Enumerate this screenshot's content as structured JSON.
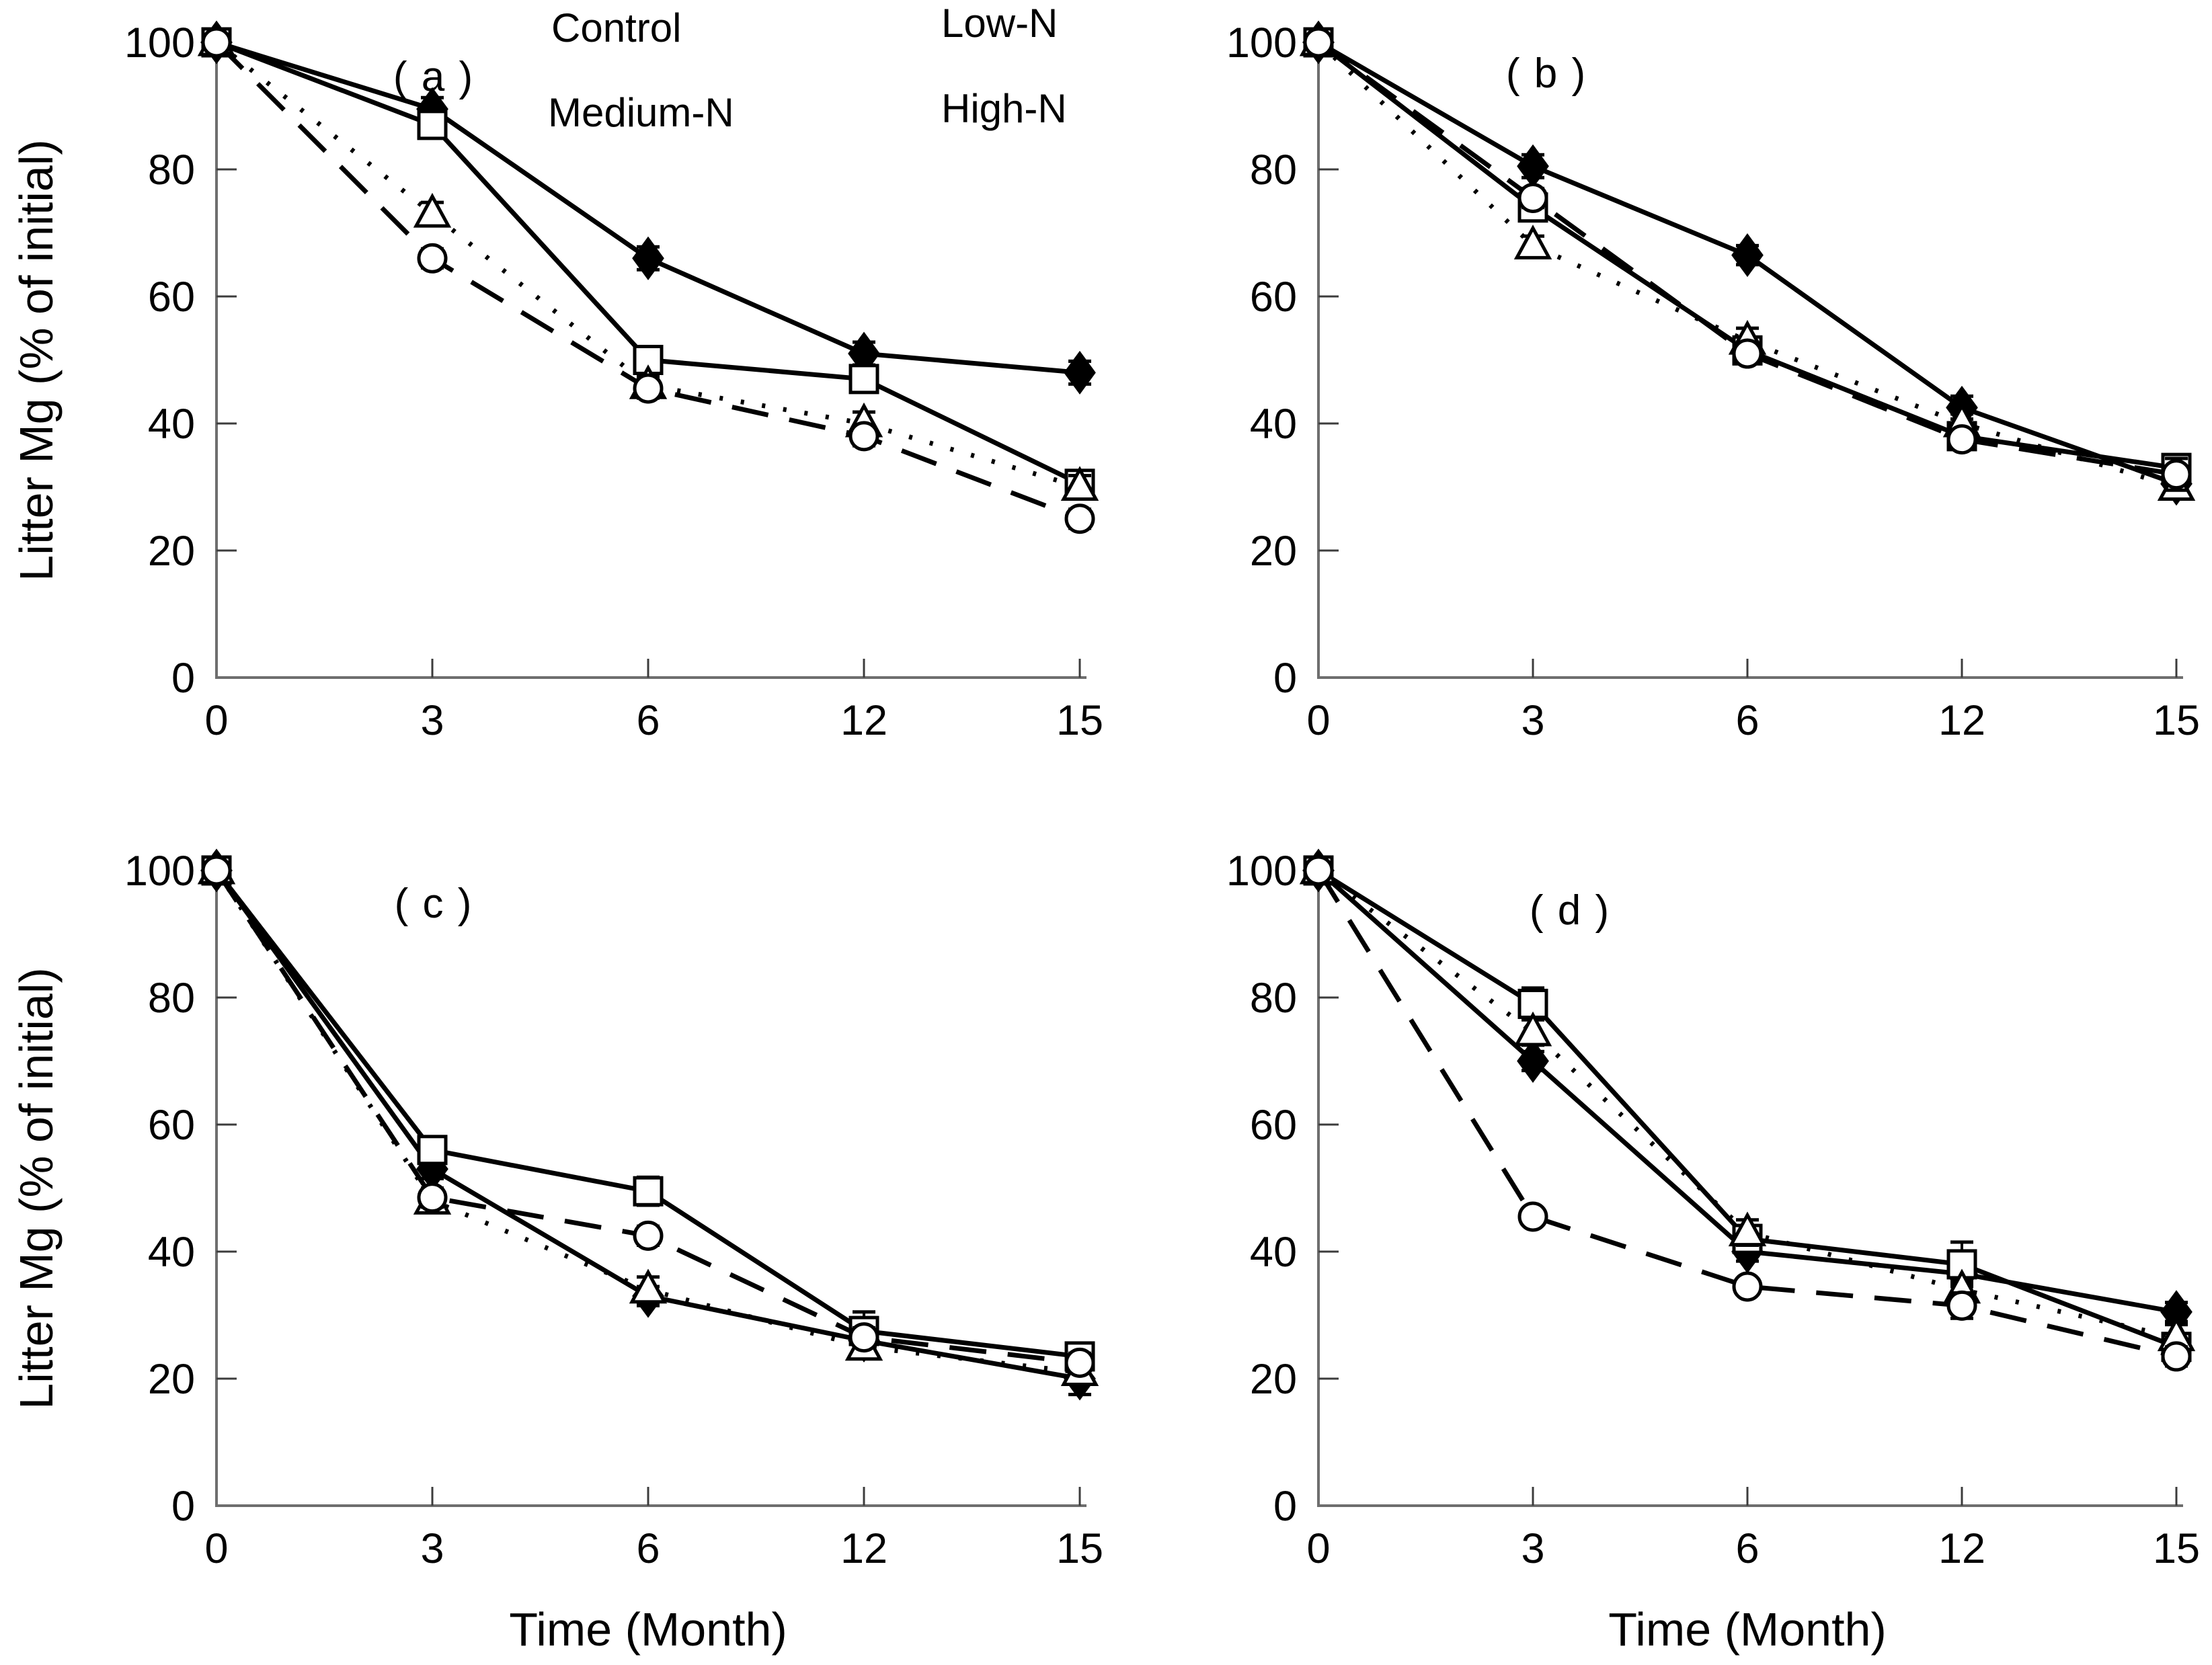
{
  "figure": {
    "y_axis_label": "Litter Mg (% of initial)",
    "x_axis_label": "Time (Month)",
    "background": "#ffffff",
    "line_color": "#000000",
    "axis_color": "#707070",
    "legend": {
      "position": "top-inside-panel-a",
      "items": [
        {
          "label": "Control",
          "marker": "open-circle",
          "line": "dashed"
        },
        {
          "label": "Low-N",
          "marker": "open-square",
          "line": "solid"
        },
        {
          "label": "Medium-N",
          "marker": "open-triangle",
          "line": "dotted"
        },
        {
          "label": "High-N",
          "marker": "filled-diamond",
          "line": "solid"
        }
      ]
    }
  },
  "chart_data": [
    {
      "type": "line",
      "label": "( a )",
      "xlabel": "",
      "ylabel": "Litter Mg (% of initial)",
      "x": [
        0,
        3,
        6,
        12,
        15
      ],
      "x_tick_labels": [
        "0",
        "3",
        "6",
        "12",
        "15"
      ],
      "y_ticks": [
        0,
        20,
        40,
        60,
        80,
        100
      ],
      "ylim": [
        0,
        100
      ],
      "x_spacing": "categorical-equal",
      "series": [
        {
          "name": "Control",
          "values": [
            100,
            66,
            45.5,
            38,
            25
          ],
          "errors": [
            0,
            1.5,
            1.5,
            1.5,
            1.5
          ]
        },
        {
          "name": "Low-N",
          "values": [
            100,
            87,
            50,
            47,
            30.5
          ],
          "errors": [
            0,
            1.5,
            1.5,
            1.5,
            1.8
          ]
        },
        {
          "name": "Medium-N",
          "values": [
            100,
            73,
            46,
            40,
            30
          ],
          "errors": [
            0,
            1.8,
            1.5,
            1.8,
            1.8
          ]
        },
        {
          "name": "High-N",
          "values": [
            100,
            89.5,
            66,
            51,
            48
          ],
          "errors": [
            0,
            1.8,
            1.8,
            1.8,
            1.8
          ]
        }
      ]
    },
    {
      "type": "line",
      "label": "( b )",
      "xlabel": "",
      "ylabel": "Litter Mg (% of initial)",
      "x": [
        0,
        3,
        6,
        12,
        15
      ],
      "x_tick_labels": [
        "0",
        "3",
        "6",
        "12",
        "15"
      ],
      "y_ticks": [
        0,
        20,
        40,
        60,
        80,
        100
      ],
      "ylim": [
        0,
        100
      ],
      "x_spacing": "categorical-equal",
      "series": [
        {
          "name": "Control",
          "values": [
            100,
            75.5,
            51,
            37.5,
            32
          ],
          "errors": [
            0,
            1.5,
            1.5,
            1.5,
            2.5
          ]
        },
        {
          "name": "Low-N",
          "values": [
            100,
            74,
            51.5,
            38,
            33
          ],
          "errors": [
            0,
            1.8,
            1.5,
            1.5,
            1.8
          ]
        },
        {
          "name": "Medium-N",
          "values": [
            100,
            68,
            53,
            40,
            30
          ],
          "errors": [
            0,
            1.5,
            2.0,
            1.5,
            1.5
          ]
        },
        {
          "name": "High-N",
          "values": [
            100,
            80.5,
            66.5,
            42.5,
            30.5
          ],
          "errors": [
            0,
            1.8,
            1.5,
            1.8,
            1.5
          ]
        }
      ]
    },
    {
      "type": "line",
      "label": "( c )",
      "xlabel": "Time (Month)",
      "ylabel": "Litter Mg (% of initial)",
      "x": [
        0,
        3,
        6,
        12,
        15
      ],
      "x_tick_labels": [
        "0",
        "3",
        "6",
        "12",
        "15"
      ],
      "y_ticks": [
        0,
        20,
        40,
        60,
        80,
        100
      ],
      "ylim": [
        0,
        100
      ],
      "x_spacing": "categorical-equal",
      "series": [
        {
          "name": "Control",
          "values": [
            100,
            48.5,
            42.5,
            26.5,
            22.5
          ],
          "errors": [
            0,
            1.5,
            1.5,
            1.5,
            1.5
          ]
        },
        {
          "name": "Low-N",
          "values": [
            100,
            56,
            49.5,
            27.5,
            23.5
          ],
          "errors": [
            0,
            1.5,
            2.2,
            3.0,
            2.0
          ]
        },
        {
          "name": "Medium-N",
          "values": [
            100,
            48,
            34,
            25,
            21
          ],
          "errors": [
            0,
            1.5,
            2.0,
            1.5,
            1.8
          ]
        },
        {
          "name": "High-N",
          "values": [
            100,
            53,
            33,
            26,
            20
          ],
          "errors": [
            0,
            1.5,
            1.5,
            1.5,
            2.5
          ]
        }
      ]
    },
    {
      "type": "line",
      "label": "( d )",
      "xlabel": "Time (Month)",
      "ylabel": "Litter Mg (% of initial)",
      "x": [
        0,
        3,
        6,
        12,
        15
      ],
      "x_tick_labels": [
        "0",
        "3",
        "6",
        "12",
        "15"
      ],
      "y_ticks": [
        0,
        20,
        40,
        60,
        80,
        100
      ],
      "ylim": [
        0,
        100
      ],
      "x_spacing": "categorical-equal",
      "series": [
        {
          "name": "Control",
          "values": [
            100,
            45.5,
            34.5,
            31.5,
            23.5
          ],
          "errors": [
            0,
            1.0,
            1.0,
            2.0,
            1.5
          ]
        },
        {
          "name": "Low-N",
          "values": [
            100,
            79,
            42,
            38,
            25
          ],
          "errors": [
            0,
            2.5,
            1.5,
            3.5,
            1.5
          ]
        },
        {
          "name": "Medium-N",
          "values": [
            100,
            74.5,
            43,
            34,
            26.5
          ],
          "errors": [
            0,
            2.0,
            2.0,
            1.5,
            2.0
          ]
        },
        {
          "name": "High-N",
          "values": [
            100,
            70,
            40,
            36.5,
            30.5
          ],
          "errors": [
            0,
            1.5,
            1.5,
            1.5,
            1.5
          ]
        }
      ]
    }
  ]
}
